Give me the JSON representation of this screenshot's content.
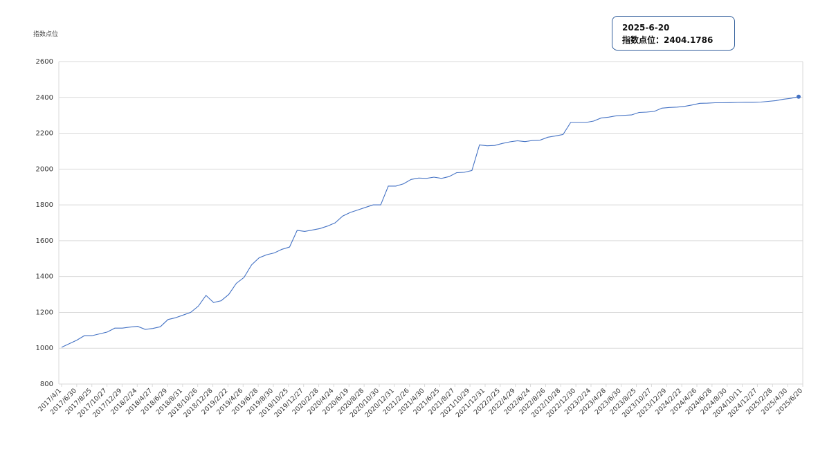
{
  "chart_data": {
    "type": "line",
    "title": "",
    "xlabel": "",
    "ylabel": "指数点位",
    "ylim": [
      800,
      2600
    ],
    "yticks": [
      "2600",
      "2400",
      "2200",
      "2000",
      "1800",
      "1600",
      "1400",
      "1200",
      "1000",
      "800"
    ],
    "grid": true,
    "legend": "none",
    "line_color": "#4472c4",
    "grid_color": "#d9d9d9",
    "x_tick_labels": [
      "2017/4/1",
      "2017/6/30",
      "2017/8/25",
      "2017/10/27",
      "2017/12/29",
      "2018/2/24",
      "2018/4/27",
      "2018/6/29",
      "2018/8/31",
      "2018/10/26",
      "2018/12/28",
      "2019/2/22",
      "2019/4/26",
      "2019/6/28",
      "2019/8/30",
      "2019/10/25",
      "2019/12/27",
      "2020/2/28",
      "2020/4/24",
      "2020/6/19",
      "2020/8/28",
      "2020/10/30",
      "2020/12/31",
      "2021/2/26",
      "2021/4/30",
      "2021/6/25",
      "2021/8/27",
      "2021/10/29",
      "2021/12/31",
      "2022/2/25",
      "2022/4/29",
      "2022/6/24",
      "2022/8/26",
      "2022/10/28",
      "2022/12/30",
      "2023/2/24",
      "2023/4/28",
      "2023/6/30",
      "2023/8/25",
      "2023/10/27",
      "2023/12/29",
      "2024/2/22",
      "2024/4/26",
      "2024/6/28",
      "2024/8/30",
      "2024/10/11",
      "2024/12/27",
      "2025/2/28",
      "2025/4/30",
      "2025/6/20"
    ],
    "series": [
      {
        "values": [
          1005,
          1025,
          1045,
          1070,
          1070,
          1080,
          1090,
          1112,
          1112,
          1118,
          1122,
          1105,
          1110,
          1120,
          1160,
          1170,
          1185,
          1200,
          1235,
          1295,
          1255,
          1265,
          1300,
          1362,
          1395,
          1465,
          1505,
          1522,
          1532,
          1552,
          1565,
          1658,
          1652,
          1660,
          1668,
          1682,
          1700,
          1738,
          1758,
          1772,
          1786,
          1800,
          1800,
          1905,
          1905,
          1918,
          1942,
          1950,
          1948,
          1955,
          1948,
          1958,
          1980,
          1982,
          1992,
          2135,
          2130,
          2132,
          2143,
          2152,
          2158,
          2153,
          2160,
          2162,
          2178,
          2185,
          2193,
          2260,
          2260,
          2260,
          2268,
          2285,
          2290,
          2297,
          2300,
          2302,
          2316,
          2318,
          2322,
          2340,
          2344,
          2346,
          2350,
          2358,
          2367,
          2368,
          2370,
          2370,
          2371,
          2372,
          2373,
          2373,
          2374,
          2378,
          2382,
          2390,
          2395,
          2404.1786
        ]
      }
    ],
    "tooltip": {
      "date": "2025-6-20",
      "label": "指数点位：2404.1786"
    }
  }
}
